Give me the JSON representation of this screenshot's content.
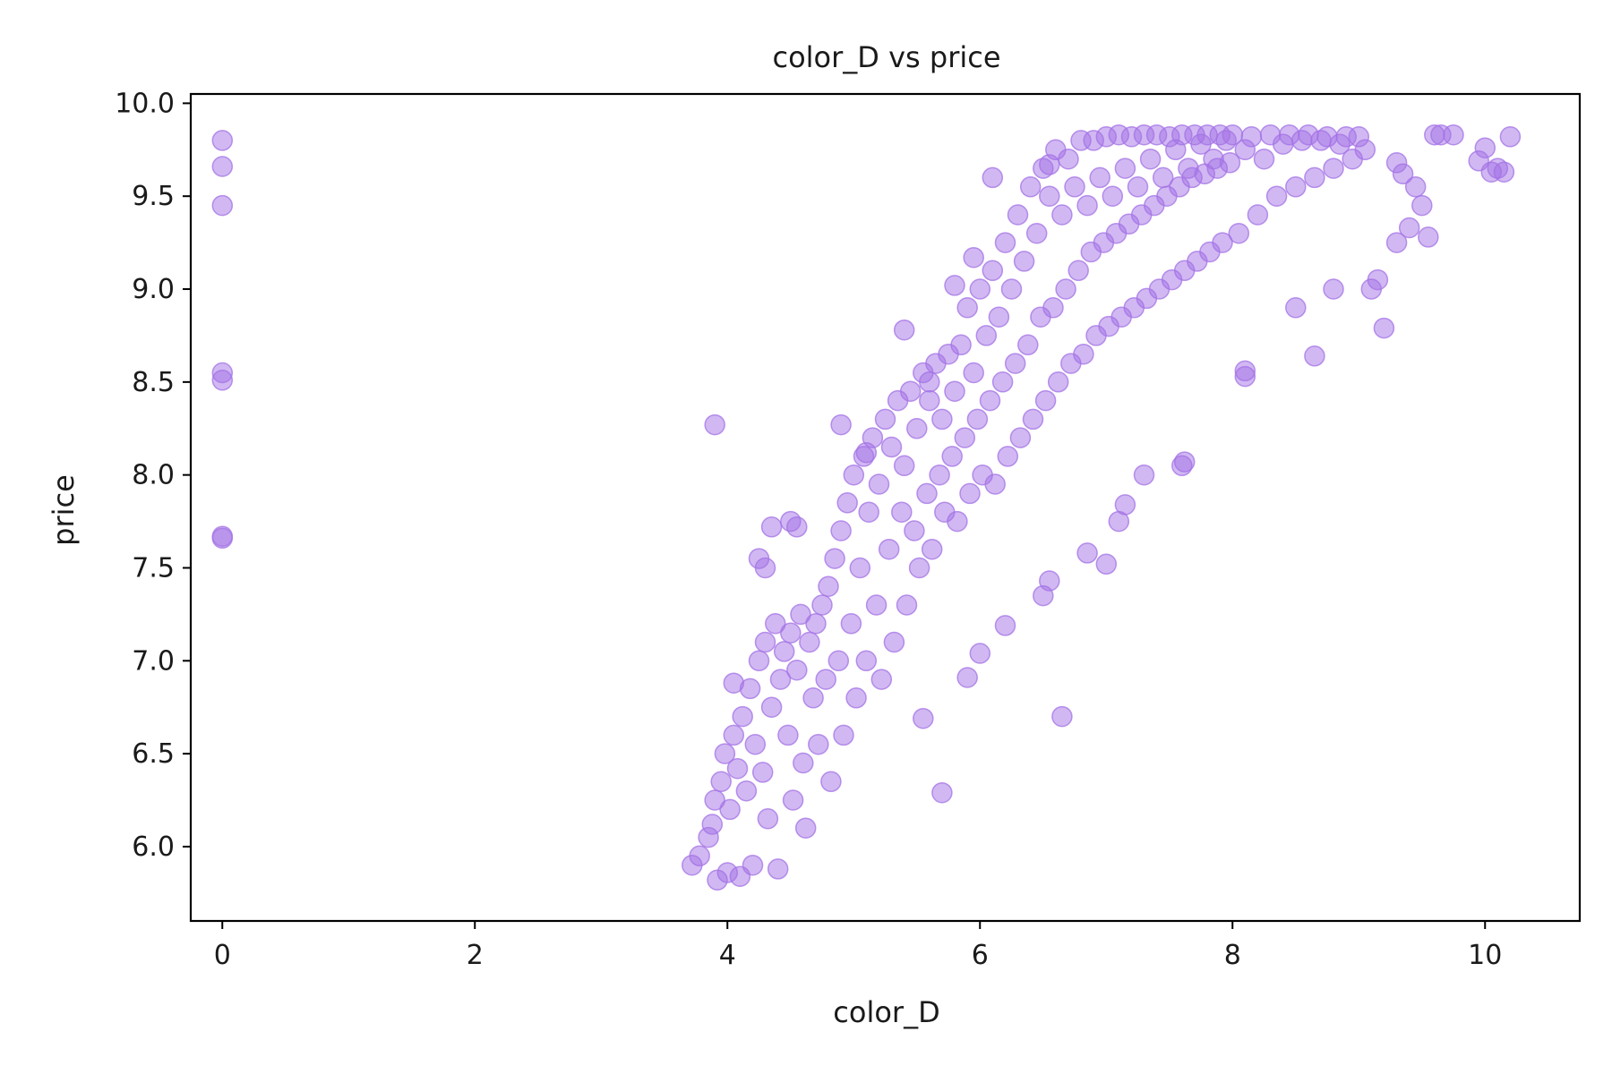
{
  "chart_data": {
    "type": "scatter",
    "title": "color_D vs price",
    "xlabel": "color_D",
    "ylabel": "price",
    "xlim": [
      -0.25,
      10.75
    ],
    "ylim": [
      5.6,
      10.05
    ],
    "x_ticks": [
      0,
      2,
      4,
      6,
      8,
      10
    ],
    "x_tick_labels": [
      "0",
      "2",
      "4",
      "6",
      "8",
      "10"
    ],
    "y_ticks": [
      6.0,
      6.5,
      7.0,
      7.5,
      8.0,
      8.5,
      9.0,
      9.5,
      10.0
    ],
    "y_tick_labels": [
      "6.0",
      "6.5",
      "7.0",
      "7.5",
      "8.0",
      "8.5",
      "9.0",
      "9.5",
      "10.0"
    ],
    "grid": false,
    "legend": "none",
    "marker_color": "#a371e6",
    "marker_alpha": 0.5,
    "series": [
      {
        "points": [
          [
            0,
            9.8
          ],
          [
            0,
            9.66
          ],
          [
            0,
            9.45
          ],
          [
            0,
            8.55
          ],
          [
            0,
            8.51
          ],
          [
            0,
            7.67
          ],
          [
            0,
            7.66
          ],
          [
            3.72,
            5.9
          ],
          [
            3.78,
            5.95
          ],
          [
            3.85,
            6.05
          ],
          [
            3.88,
            6.12
          ],
          [
            3.9,
            6.25
          ],
          [
            3.92,
            5.82
          ],
          [
            3.95,
            6.35
          ],
          [
            3.98,
            6.5
          ],
          [
            4.0,
            5.86
          ],
          [
            4.02,
            6.2
          ],
          [
            4.05,
            6.6
          ],
          [
            4.08,
            6.42
          ],
          [
            4.1,
            5.84
          ],
          [
            4.12,
            6.7
          ],
          [
            4.15,
            6.3
          ],
          [
            4.18,
            6.85
          ],
          [
            4.2,
            5.9
          ],
          [
            4.22,
            6.55
          ],
          [
            4.25,
            7.0
          ],
          [
            4.28,
            6.4
          ],
          [
            4.3,
            7.1
          ],
          [
            4.32,
            6.15
          ],
          [
            4.35,
            6.75
          ],
          [
            4.38,
            7.2
          ],
          [
            4.4,
            5.88
          ],
          [
            4.42,
            6.9
          ],
          [
            4.45,
            7.05
          ],
          [
            4.48,
            6.6
          ],
          [
            4.5,
            7.15
          ],
          [
            4.52,
            6.25
          ],
          [
            4.55,
            6.95
          ],
          [
            4.58,
            7.25
          ],
          [
            4.6,
            6.45
          ],
          [
            4.62,
            6.1
          ],
          [
            4.65,
            7.1
          ],
          [
            4.68,
            6.8
          ],
          [
            4.7,
            7.2
          ],
          [
            4.72,
            6.55
          ],
          [
            4.75,
            7.3
          ],
          [
            4.78,
            6.9
          ],
          [
            4.8,
            7.4
          ],
          [
            4.82,
            6.35
          ],
          [
            4.85,
            7.55
          ],
          [
            4.88,
            7.0
          ],
          [
            4.9,
            7.7
          ],
          [
            4.92,
            6.6
          ],
          [
            4.95,
            7.85
          ],
          [
            4.98,
            7.2
          ],
          [
            5.0,
            8.0
          ],
          [
            5.02,
            6.8
          ],
          [
            5.05,
            7.5
          ],
          [
            5.08,
            8.1
          ],
          [
            5.1,
            7.0
          ],
          [
            5.12,
            7.8
          ],
          [
            5.15,
            8.2
          ],
          [
            5.18,
            7.3
          ],
          [
            5.2,
            7.95
          ],
          [
            5.22,
            6.9
          ],
          [
            5.25,
            8.3
          ],
          [
            5.28,
            7.6
          ],
          [
            5.3,
            8.15
          ],
          [
            5.32,
            7.1
          ],
          [
            5.35,
            8.4
          ],
          [
            5.38,
            7.8
          ],
          [
            5.4,
            8.05
          ],
          [
            5.42,
            7.3
          ],
          [
            5.45,
            8.45
          ],
          [
            5.48,
            7.7
          ],
          [
            5.5,
            8.25
          ],
          [
            5.52,
            7.5
          ],
          [
            5.55,
            8.55
          ],
          [
            5.58,
            7.9
          ],
          [
            5.6,
            8.5
          ],
          [
            5.62,
            7.6
          ],
          [
            5.65,
            8.6
          ],
          [
            5.68,
            8.0
          ],
          [
            5.7,
            8.3
          ],
          [
            5.72,
            7.8
          ],
          [
            5.75,
            8.65
          ],
          [
            5.78,
            8.1
          ],
          [
            5.8,
            8.45
          ],
          [
            5.82,
            7.75
          ],
          [
            5.85,
            8.7
          ],
          [
            5.88,
            8.2
          ],
          [
            5.9,
            8.9
          ],
          [
            5.92,
            7.9
          ],
          [
            5.95,
            8.55
          ],
          [
            5.98,
            8.3
          ],
          [
            6.0,
            9.0
          ],
          [
            6.02,
            8.0
          ],
          [
            6.05,
            8.75
          ],
          [
            6.08,
            8.4
          ],
          [
            6.1,
            9.1
          ],
          [
            6.12,
            7.95
          ],
          [
            6.15,
            8.85
          ],
          [
            6.18,
            8.5
          ],
          [
            6.2,
            9.25
          ],
          [
            6.22,
            8.1
          ],
          [
            6.25,
            9.0
          ],
          [
            6.28,
            8.6
          ],
          [
            6.3,
            9.4
          ],
          [
            6.32,
            8.2
          ],
          [
            6.35,
            9.15
          ],
          [
            6.38,
            8.7
          ],
          [
            6.4,
            9.55
          ],
          [
            6.42,
            8.3
          ],
          [
            6.45,
            9.3
          ],
          [
            6.48,
            8.85
          ],
          [
            6.5,
            9.65
          ],
          [
            6.52,
            8.4
          ],
          [
            6.55,
            9.5
          ],
          [
            6.58,
            8.9
          ],
          [
            6.6,
            9.75
          ],
          [
            6.62,
            8.5
          ],
          [
            6.65,
            9.4
          ],
          [
            6.68,
            9.0
          ],
          [
            6.7,
            9.7
          ],
          [
            6.72,
            8.6
          ],
          [
            6.75,
            9.55
          ],
          [
            6.78,
            9.1
          ],
          [
            6.8,
            9.8
          ],
          [
            6.82,
            8.65
          ],
          [
            6.85,
            9.45
          ],
          [
            6.88,
            9.2
          ],
          [
            6.9,
            9.8
          ],
          [
            6.92,
            8.75
          ],
          [
            6.95,
            9.6
          ],
          [
            6.98,
            9.25
          ],
          [
            7.0,
            9.82
          ],
          [
            7.02,
            8.8
          ],
          [
            7.05,
            9.5
          ],
          [
            7.08,
            9.3
          ],
          [
            7.1,
            9.83
          ],
          [
            7.12,
            8.85
          ],
          [
            7.15,
            9.65
          ],
          [
            7.18,
            9.35
          ],
          [
            7.2,
            9.82
          ],
          [
            7.22,
            8.9
          ],
          [
            7.25,
            9.55
          ],
          [
            7.28,
            9.4
          ],
          [
            7.3,
            9.83
          ],
          [
            7.32,
            8.95
          ],
          [
            7.35,
            9.7
          ],
          [
            7.38,
            9.45
          ],
          [
            7.4,
            9.83
          ],
          [
            7.42,
            9.0
          ],
          [
            7.45,
            9.6
          ],
          [
            7.48,
            9.5
          ],
          [
            7.5,
            9.82
          ],
          [
            7.52,
            9.05
          ],
          [
            7.55,
            9.75
          ],
          [
            7.58,
            9.55
          ],
          [
            7.6,
            9.83
          ],
          [
            7.62,
            9.1
          ],
          [
            7.65,
            9.65
          ],
          [
            7.68,
            9.6
          ],
          [
            7.7,
            9.83
          ],
          [
            7.72,
            9.15
          ],
          [
            7.75,
            9.78
          ],
          [
            7.78,
            9.62
          ],
          [
            7.8,
            9.83
          ],
          [
            7.82,
            9.2
          ],
          [
            7.85,
            9.7
          ],
          [
            7.88,
            9.65
          ],
          [
            7.9,
            9.83
          ],
          [
            7.92,
            9.25
          ],
          [
            7.95,
            9.8
          ],
          [
            7.98,
            9.68
          ],
          [
            8.0,
            9.83
          ],
          [
            8.05,
            9.3
          ],
          [
            8.1,
            9.75
          ],
          [
            8.15,
            9.82
          ],
          [
            8.2,
            9.4
          ],
          [
            8.25,
            9.7
          ],
          [
            8.3,
            9.83
          ],
          [
            8.35,
            9.5
          ],
          [
            8.4,
            9.78
          ],
          [
            8.45,
            9.83
          ],
          [
            8.5,
            9.55
          ],
          [
            8.55,
            9.8
          ],
          [
            8.6,
            9.83
          ],
          [
            8.65,
            9.6
          ],
          [
            8.7,
            9.8
          ],
          [
            8.75,
            9.82
          ],
          [
            8.8,
            9.65
          ],
          [
            8.85,
            9.78
          ],
          [
            8.9,
            9.82
          ],
          [
            8.95,
            9.7
          ],
          [
            9.0,
            9.82
          ],
          [
            9.05,
            9.75
          ],
          [
            3.9,
            8.27
          ],
          [
            5.4,
            8.78
          ],
          [
            4.05,
            6.88
          ],
          [
            5.55,
            6.69
          ],
          [
            5.7,
            6.29
          ],
          [
            6.65,
            6.7
          ],
          [
            6.2,
            7.19
          ],
          [
            6.5,
            7.35
          ],
          [
            6.55,
            7.43
          ],
          [
            7.3,
            8.0
          ],
          [
            7.6,
            8.05
          ],
          [
            7.62,
            8.07
          ],
          [
            8.1,
            8.53
          ],
          [
            8.1,
            8.56
          ],
          [
            8.5,
            8.9
          ],
          [
            8.65,
            8.64
          ],
          [
            9.2,
            8.79
          ],
          [
            8.8,
            9.0
          ],
          [
            9.1,
            9.0
          ],
          [
            9.15,
            9.05
          ],
          [
            9.3,
            9.25
          ],
          [
            9.4,
            9.33
          ],
          [
            9.55,
            9.28
          ],
          [
            9.5,
            9.45
          ],
          [
            9.45,
            9.55
          ],
          [
            9.3,
            9.68
          ],
          [
            9.35,
            9.62
          ],
          [
            9.6,
            9.83
          ],
          [
            9.65,
            9.83
          ],
          [
            9.75,
            9.83
          ],
          [
            9.95,
            9.69
          ],
          [
            10.0,
            9.76
          ],
          [
            10.05,
            9.63
          ],
          [
            10.1,
            9.65
          ],
          [
            10.15,
            9.63
          ],
          [
            10.2,
            9.82
          ],
          [
            4.9,
            8.27
          ],
          [
            5.6,
            8.4
          ],
          [
            5.1,
            8.12
          ],
          [
            4.5,
            7.75
          ],
          [
            4.55,
            7.72
          ],
          [
            4.35,
            7.72
          ],
          [
            4.3,
            7.5
          ],
          [
            4.25,
            7.55
          ],
          [
            5.8,
            9.02
          ],
          [
            5.95,
            9.17
          ],
          [
            6.1,
            9.6
          ],
          [
            6.55,
            9.67
          ],
          [
            7.0,
            7.52
          ],
          [
            7.1,
            7.75
          ],
          [
            7.15,
            7.84
          ],
          [
            6.85,
            7.58
          ],
          [
            6.0,
            7.04
          ],
          [
            5.9,
            6.91
          ]
        ]
      }
    ]
  }
}
